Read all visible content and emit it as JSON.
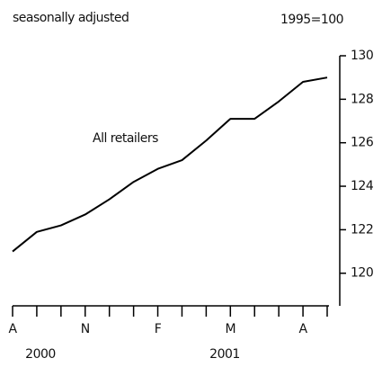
{
  "chart_data": {
    "type": "line",
    "subtitle": "seasonally adjusted",
    "unit_label": "1995=100",
    "annotation": "All retailers",
    "categories": [
      "A",
      null,
      null,
      "N",
      null,
      null,
      "F",
      null,
      null,
      "M",
      null,
      null,
      "A",
      null
    ],
    "year_labels": [
      "2000",
      "2001"
    ],
    "series": [
      {
        "name": "All retailers",
        "color": "#000000",
        "values": [
          121.0,
          121.9,
          122.2,
          122.7,
          123.4,
          124.2,
          124.8,
          125.2,
          126.1,
          127.1,
          127.1,
          127.9,
          128.8,
          129.0
        ]
      }
    ],
    "ylim": [
      118.5,
      130
    ],
    "yticks": [
      120,
      122,
      124,
      126,
      128,
      130
    ],
    "y_axis_side": "right"
  }
}
